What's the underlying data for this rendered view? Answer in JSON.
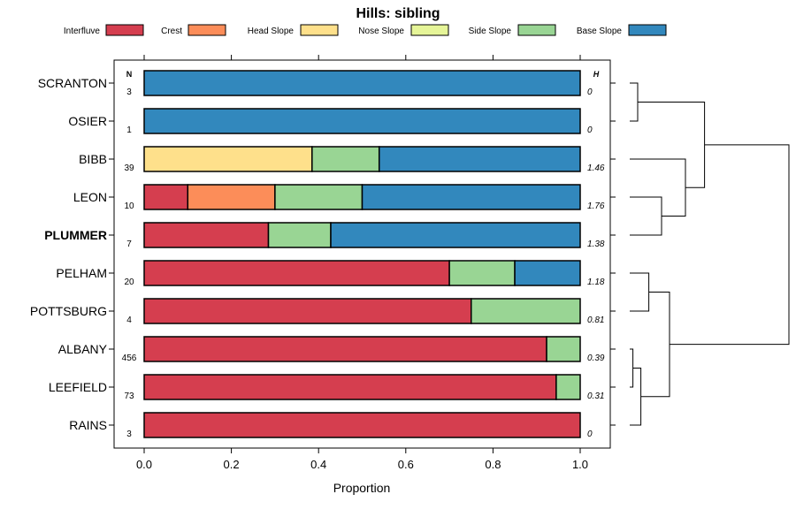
{
  "chart_data": {
    "type": "bar",
    "subtype": "stacked-horizontal-proportion",
    "title": "Hills: sibling",
    "xlabel": "Proportion",
    "ylabel": "",
    "xlim": [
      0,
      1
    ],
    "x_ticks": [
      "0.0",
      "0.2",
      "0.4",
      "0.6",
      "0.8",
      "1.0"
    ],
    "n_header": "N",
    "h_header": "H",
    "highlight": "PLUMMER",
    "legend": [
      {
        "name": "Interfluve",
        "color": "#D53E4F"
      },
      {
        "name": "Crest",
        "color": "#FC8D59"
      },
      {
        "name": "Head Slope",
        "color": "#FEE08B"
      },
      {
        "name": "Nose Slope",
        "color": "#E6F598"
      },
      {
        "name": "Side Slope",
        "color": "#99D594"
      },
      {
        "name": "Base Slope",
        "color": "#3288BD"
      }
    ],
    "categories": [
      "SCRANTON",
      "OSIER",
      "BIBB",
      "LEON",
      "PLUMMER",
      "PELHAM",
      "POTTSBURG",
      "ALBANY",
      "LEEFIELD",
      "RAINS"
    ],
    "n": [
      "3",
      "1",
      "39",
      "10",
      "7",
      "20",
      "4",
      "456",
      "73",
      "3"
    ],
    "h": [
      "0",
      "0",
      "1.46",
      "1.76",
      "1.38",
      "1.18",
      "0.81",
      "0.39",
      "0.31",
      "0"
    ],
    "series": [
      {
        "name": "Interfluve",
        "values": [
          0,
          0,
          0,
          0.1,
          0.285,
          0.7,
          0.75,
          0.923,
          0.945,
          1.0
        ]
      },
      {
        "name": "Crest",
        "values": [
          0,
          0,
          0,
          0.2,
          0,
          0,
          0,
          0,
          0,
          0
        ]
      },
      {
        "name": "Head Slope",
        "values": [
          0,
          0,
          0.385,
          0,
          0,
          0,
          0,
          0,
          0,
          0
        ]
      },
      {
        "name": "Nose Slope",
        "values": [
          0,
          0,
          0,
          0,
          0,
          0,
          0,
          0,
          0,
          0
        ]
      },
      {
        "name": "Side Slope",
        "values": [
          0,
          0,
          0.154,
          0.2,
          0.143,
          0.15,
          0.25,
          0.077,
          0.055,
          0
        ]
      },
      {
        "name": "Base Slope",
        "values": [
          1.0,
          1.0,
          0.461,
          0.5,
          0.572,
          0.15,
          0,
          0,
          0,
          0
        ]
      }
    ],
    "dendrogram": {
      "leaves": [
        "SCRANTON",
        "OSIER",
        "BIBB",
        "LEON",
        "PLUMMER",
        "PELHAM",
        "POTTSBURG",
        "ALBANY",
        "LEEFIELD",
        "RAINS"
      ],
      "merges": [
        {
          "children": [
            "SCRANTON",
            "OSIER"
          ],
          "height": 0.05
        },
        {
          "children": [
            "LEON",
            "PLUMMER"
          ],
          "height": 0.2
        },
        {
          "children": [
            "BIBB",
            "LEON+PLUMMER"
          ],
          "height": 0.35
        },
        {
          "children": [
            "SCRANTON+OSIER",
            "BIBB+LEON+PLUMMER"
          ],
          "height": 0.47
        },
        {
          "children": [
            "ALBANY",
            "LEEFIELD"
          ],
          "height": 0.02
        },
        {
          "children": [
            "ALBANY+LEEFIELD",
            "RAINS"
          ],
          "height": 0.07
        },
        {
          "children": [
            "PELHAM",
            "POTTSBURG"
          ],
          "height": 0.12
        },
        {
          "children": [
            "PELHAM+POTTSBURG",
            "ALBANY+LEEFIELD+RAINS"
          ],
          "height": 0.25
        },
        {
          "children": [
            "upper",
            "lower"
          ],
          "height": 1.0
        }
      ]
    }
  }
}
